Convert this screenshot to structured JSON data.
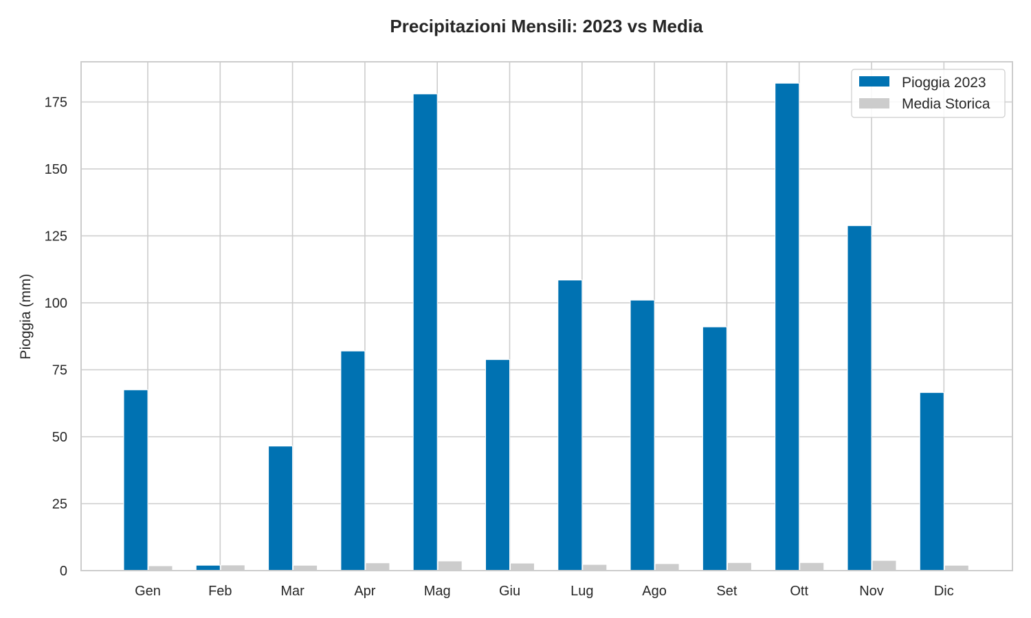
{
  "chart_data": {
    "type": "bar",
    "title": "Precipitazioni Mensili: 2023 vs Media",
    "xlabel": "",
    "ylabel": "Pioggia (mm)",
    "ylim": [
      0,
      190
    ],
    "yticks": [
      0,
      25,
      50,
      75,
      100,
      125,
      150,
      175
    ],
    "grid": true,
    "legend_position": "top-right",
    "categories": [
      "Gen",
      "Feb",
      "Mar",
      "Apr",
      "Mag",
      "Giu",
      "Lug",
      "Ago",
      "Set",
      "Ott",
      "Nov",
      "Dic"
    ],
    "series": [
      {
        "name": "Pioggia 2023",
        "color": "#0072b2",
        "values": [
          67.5,
          2.0,
          46.5,
          82.0,
          178.0,
          78.8,
          108.5,
          101.0,
          91.0,
          182.0,
          128.8,
          66.5
        ]
      },
      {
        "name": "Media Storica",
        "color": "#cccccc",
        "values": [
          1.8,
          2.1,
          2.0,
          2.9,
          3.6,
          2.8,
          2.3,
          2.6,
          3.0,
          3.0,
          3.8,
          2.0
        ]
      }
    ]
  }
}
